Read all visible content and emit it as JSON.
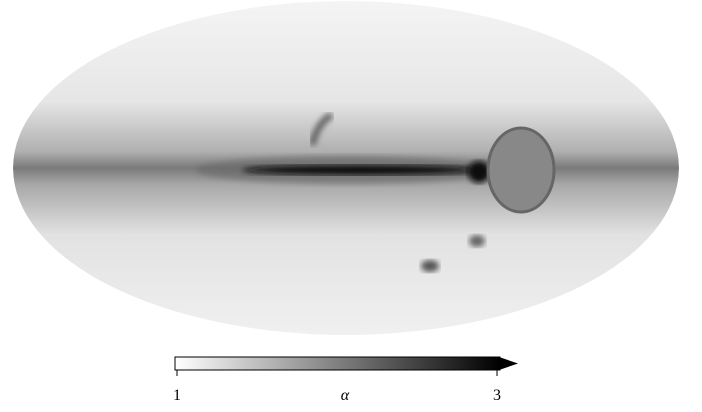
{
  "colorbar": {
    "label": "α",
    "lim": [
      1,
      3
    ],
    "ticks": [
      1,
      3
    ]
  }
}
